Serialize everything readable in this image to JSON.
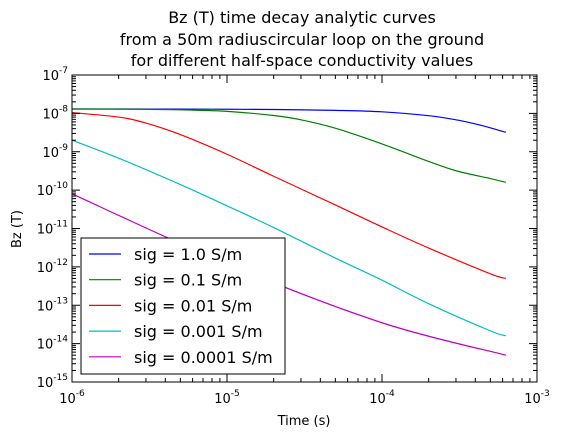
{
  "chart_data": {
    "type": "line",
    "title": [
      "Bz (T) time decay analytic curves",
      "from a 50m radiuscircular loop on the ground",
      "for different half-space conductivity values"
    ],
    "xlabel": "Time (s)",
    "ylabel": "Bz (T)",
    "xscale": "log",
    "yscale": "log",
    "xlim": [
      1e-06,
      0.001
    ],
    "ylim": [
      1e-15,
      1e-07
    ],
    "grid": false,
    "legend_position": "lower-left",
    "x_ticks": [
      {
        "base": "10",
        "exp": "-6",
        "value": 1e-06
      },
      {
        "base": "10",
        "exp": "-5",
        "value": 1e-05
      },
      {
        "base": "10",
        "exp": "-4",
        "value": 0.0001
      },
      {
        "base": "10",
        "exp": "-3",
        "value": 0.001
      }
    ],
    "y_ticks": [
      {
        "base": "10",
        "exp": "-15",
        "value": 1e-15
      },
      {
        "base": "10",
        "exp": "-14",
        "value": 1e-14
      },
      {
        "base": "10",
        "exp": "-13",
        "value": 1e-13
      },
      {
        "base": "10",
        "exp": "-12",
        "value": 1e-12
      },
      {
        "base": "10",
        "exp": "-11",
        "value": 1e-11
      },
      {
        "base": "10",
        "exp": "-10",
        "value": 1e-10
      },
      {
        "base": "10",
        "exp": "-9",
        "value": 1e-09
      },
      {
        "base": "10",
        "exp": "-8",
        "value": 1e-08
      },
      {
        "base": "10",
        "exp": "-7",
        "value": 1e-07
      }
    ],
    "series": [
      {
        "name": "sig = 1.0 S/m",
        "color": "#0000ff",
        "x": [
          1e-06,
          2e-06,
          5e-06,
          1e-05,
          2e-05,
          5e-05,
          0.0001,
          0.0002,
          0.0003,
          0.0004,
          0.0005,
          0.00063
        ],
        "y": [
          1.3e-08,
          1.3e-08,
          1.29e-08,
          1.28e-08,
          1.26e-08,
          1.2e-08,
          1.1e-08,
          8.7e-09,
          6.8e-09,
          5.3e-09,
          4.2e-09,
          3.2e-09
        ]
      },
      {
        "name": "sig = 0.1 S/m",
        "color": "#008000",
        "x": [
          1e-06,
          2e-06,
          5e-06,
          1e-05,
          2e-05,
          3e-05,
          5e-05,
          0.0001,
          0.0002,
          0.0003,
          0.0005,
          0.00063
        ],
        "y": [
          1.3e-08,
          1.29e-08,
          1.24e-08,
          1.13e-08,
          8.8e-09,
          6.8e-09,
          4.1e-09,
          1.6e-09,
          5.6e-10,
          3.2e-10,
          2e-10,
          1.6e-10
        ]
      },
      {
        "name": "sig = 0.01 S/m",
        "color": "#ff0000",
        "x": [
          1e-06,
          2e-06,
          3e-06,
          5e-06,
          1e-05,
          2e-05,
          5e-05,
          0.0001,
          0.0002,
          0.0005,
          0.00063
        ],
        "y": [
          1.05e-08,
          8e-09,
          5.6e-09,
          2.8e-09,
          8.6e-10,
          2.3e-10,
          4.1e-11,
          1.1e-11,
          3.1e-12,
          6.6e-13,
          5e-13
        ]
      },
      {
        "name": "sig = 0.001 S/m",
        "color": "#00bfbf",
        "x": [
          1e-06,
          2e-06,
          5e-06,
          1e-05,
          2e-05,
          5e-05,
          0.0001,
          0.0002,
          0.0005,
          0.00063
        ],
        "y": [
          2e-09,
          6.8e-10,
          1.4e-10,
          3.9e-11,
          1.06e-11,
          1.7e-12,
          4.5e-13,
          1.1e-13,
          2.15e-14,
          1.6e-14
        ]
      },
      {
        "name": "sig = 0.0001 S/m",
        "color": "#bf00bf",
        "x": [
          1e-06,
          1e-05,
          0.0001,
          0.00063
        ],
        "y": [
          8e-11,
          1.2e-12,
          3.5e-14,
          5e-15
        ]
      }
    ]
  }
}
